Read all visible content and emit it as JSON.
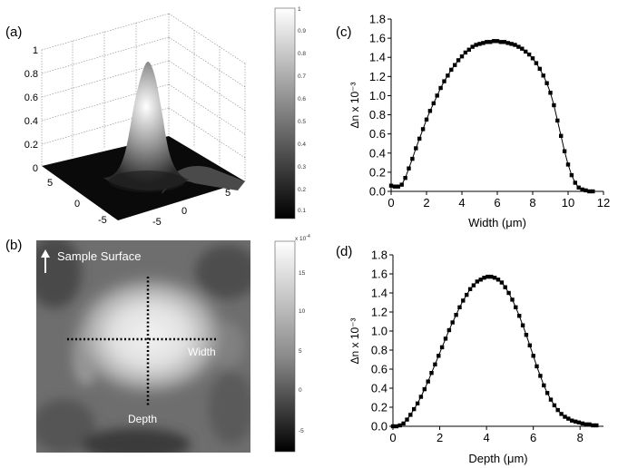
{
  "panels": {
    "a": {
      "label": "(a)"
    },
    "b": {
      "label": "(b)",
      "surface_label": "Sample Surface",
      "width_label": "Width",
      "depth_label": "Depth"
    },
    "c": {
      "label": "(c)"
    },
    "d": {
      "label": "(d)"
    }
  },
  "colorbars": {
    "a": {
      "ticks": [
        "1",
        "0.9",
        "0.8",
        "0.7",
        "0.6",
        "0.5",
        "0.4",
        "0.3",
        "0.2",
        "0.1"
      ]
    },
    "b": {
      "multiplier": "x 10",
      "multiplier_exp": "-4",
      "ticks": [
        "15",
        "10",
        "5",
        "0",
        "-5"
      ]
    }
  },
  "surface_axes": {
    "z_ticks": [
      "1",
      "0.8",
      "0.6",
      "0.4",
      "0.2",
      "0"
    ],
    "left_ticks": [
      "5",
      "0",
      "-5"
    ],
    "front_ticks": [
      "5",
      "0",
      "-5"
    ]
  },
  "chart_data": [
    {
      "type": "scatter",
      "panel": "(c)",
      "xlabel": "Width (μm)",
      "ylabel": "Δn x 10⁻³",
      "xlim": [
        0,
        12
      ],
      "ylim": [
        0,
        1.8
      ],
      "xticks": [
        "0",
        "2",
        "4",
        "6",
        "8",
        "10",
        "12"
      ],
      "yticks": [
        "0.0",
        "0.2",
        "0.4",
        "0.6",
        "0.8",
        "1.0",
        "1.2",
        "1.4",
        "1.6",
        "1.8"
      ],
      "x": [
        0,
        0.2,
        0.4,
        0.6,
        0.8,
        1.0,
        1.2,
        1.4,
        1.6,
        1.8,
        2.0,
        2.2,
        2.4,
        2.6,
        2.8,
        3.0,
        3.2,
        3.4,
        3.6,
        3.8,
        4.0,
        4.2,
        4.4,
        4.6,
        4.8,
        5.0,
        5.2,
        5.4,
        5.6,
        5.8,
        6.0,
        6.2,
        6.4,
        6.6,
        6.8,
        7.0,
        7.2,
        7.4,
        7.6,
        7.8,
        8.0,
        8.2,
        8.4,
        8.6,
        8.8,
        9.0,
        9.2,
        9.4,
        9.6,
        9.8,
        10.0,
        10.2,
        10.4,
        10.6,
        10.8,
        11.0,
        11.2,
        11.4
      ],
      "y": [
        0.06,
        0.05,
        0.05,
        0.07,
        0.14,
        0.24,
        0.34,
        0.45,
        0.55,
        0.65,
        0.75,
        0.84,
        0.92,
        1.0,
        1.08,
        1.15,
        1.21,
        1.27,
        1.32,
        1.37,
        1.41,
        1.45,
        1.48,
        1.51,
        1.53,
        1.54,
        1.55,
        1.56,
        1.56,
        1.57,
        1.57,
        1.56,
        1.56,
        1.55,
        1.54,
        1.53,
        1.51,
        1.49,
        1.46,
        1.43,
        1.39,
        1.34,
        1.28,
        1.21,
        1.13,
        1.03,
        0.9,
        0.74,
        0.58,
        0.42,
        0.28,
        0.17,
        0.09,
        0.04,
        0.02,
        0.01,
        0.0,
        0.0
      ]
    },
    {
      "type": "scatter",
      "panel": "(d)",
      "xlabel": "Depth (μm)",
      "ylabel": "Δn x 10⁻³",
      "xlim": [
        0,
        9
      ],
      "ylim": [
        0,
        1.8
      ],
      "xticks": [
        "0",
        "2",
        "4",
        "6",
        "8"
      ],
      "yticks": [
        "0.0",
        "0.2",
        "0.4",
        "0.6",
        "0.8",
        "1.0",
        "1.2",
        "1.4",
        "1.6",
        "1.8"
      ],
      "x": [
        0,
        0.15,
        0.3,
        0.45,
        0.6,
        0.75,
        0.9,
        1.05,
        1.2,
        1.35,
        1.5,
        1.65,
        1.8,
        1.95,
        2.1,
        2.25,
        2.4,
        2.55,
        2.7,
        2.85,
        3.0,
        3.15,
        3.3,
        3.45,
        3.6,
        3.75,
        3.9,
        4.05,
        4.2,
        4.35,
        4.5,
        4.65,
        4.8,
        4.95,
        5.1,
        5.25,
        5.4,
        5.55,
        5.7,
        5.85,
        6.0,
        6.15,
        6.3,
        6.45,
        6.6,
        6.75,
        6.9,
        7.05,
        7.2,
        7.35,
        7.5,
        7.65,
        7.8,
        7.95,
        8.1,
        8.25,
        8.4,
        8.55,
        8.7
      ],
      "y": [
        0.0,
        0.0,
        0.01,
        0.03,
        0.07,
        0.12,
        0.18,
        0.24,
        0.31,
        0.39,
        0.47,
        0.56,
        0.65,
        0.74,
        0.83,
        0.92,
        1.01,
        1.09,
        1.17,
        1.25,
        1.32,
        1.38,
        1.44,
        1.48,
        1.52,
        1.54,
        1.56,
        1.57,
        1.57,
        1.56,
        1.54,
        1.51,
        1.46,
        1.4,
        1.33,
        1.25,
        1.16,
        1.06,
        0.96,
        0.85,
        0.74,
        0.63,
        0.53,
        0.43,
        0.35,
        0.28,
        0.22,
        0.17,
        0.13,
        0.1,
        0.08,
        0.06,
        0.05,
        0.04,
        0.03,
        0.02,
        0.02,
        0.01,
        0.01
      ]
    }
  ]
}
